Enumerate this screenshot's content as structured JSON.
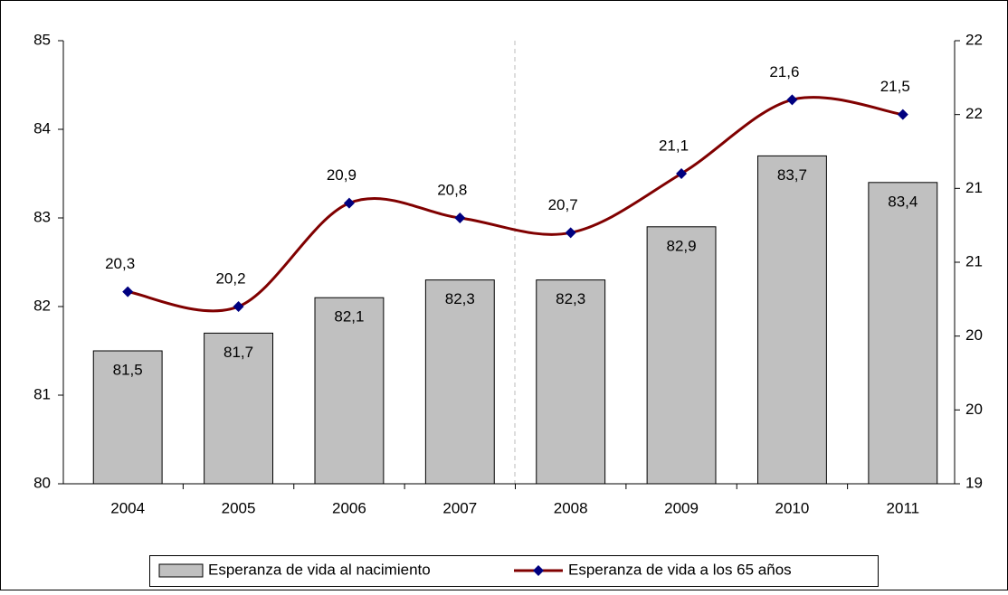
{
  "chart_data": {
    "type": "bar",
    "categories": [
      "2004",
      "2005",
      "2006",
      "2007",
      "2008",
      "2009",
      "2010",
      "2011"
    ],
    "series": [
      {
        "name": "Esperanza de vida al nacimiento",
        "type": "bar",
        "color": "#c0c0c0",
        "values": [
          81.5,
          81.7,
          82.1,
          82.3,
          82.3,
          82.9,
          83.7,
          83.4
        ],
        "value_labels": [
          "81,5",
          "81,7",
          "82,1",
          "82,3",
          "82,3",
          "82,9",
          "83,7",
          "83,4"
        ]
      },
      {
        "name": "Esperanza de vida a los 65 años",
        "type": "line",
        "axis": "y2",
        "color": "#800000",
        "marker_color": "#000080",
        "values": [
          20.3,
          20.2,
          20.9,
          20.8,
          20.7,
          21.1,
          21.6,
          21.5
        ],
        "value_labels": [
          "20,3",
          "20,2",
          "20,9",
          "20,8",
          "20,7",
          "21,1",
          "21,6",
          "21,5"
        ]
      }
    ],
    "ylim": [
      80,
      85
    ],
    "yticks": [
      80,
      81,
      82,
      83,
      84,
      85
    ],
    "y2lim": [
      19,
      22
    ],
    "y2ticks": [
      19,
      {
        "value": 19.5,
        "label": "20"
      },
      20,
      {
        "value": 20.5,
        "label": "21"
      },
      21,
      {
        "value": 21.5,
        "label": "22"
      },
      22
    ],
    "legend": "bottom"
  }
}
